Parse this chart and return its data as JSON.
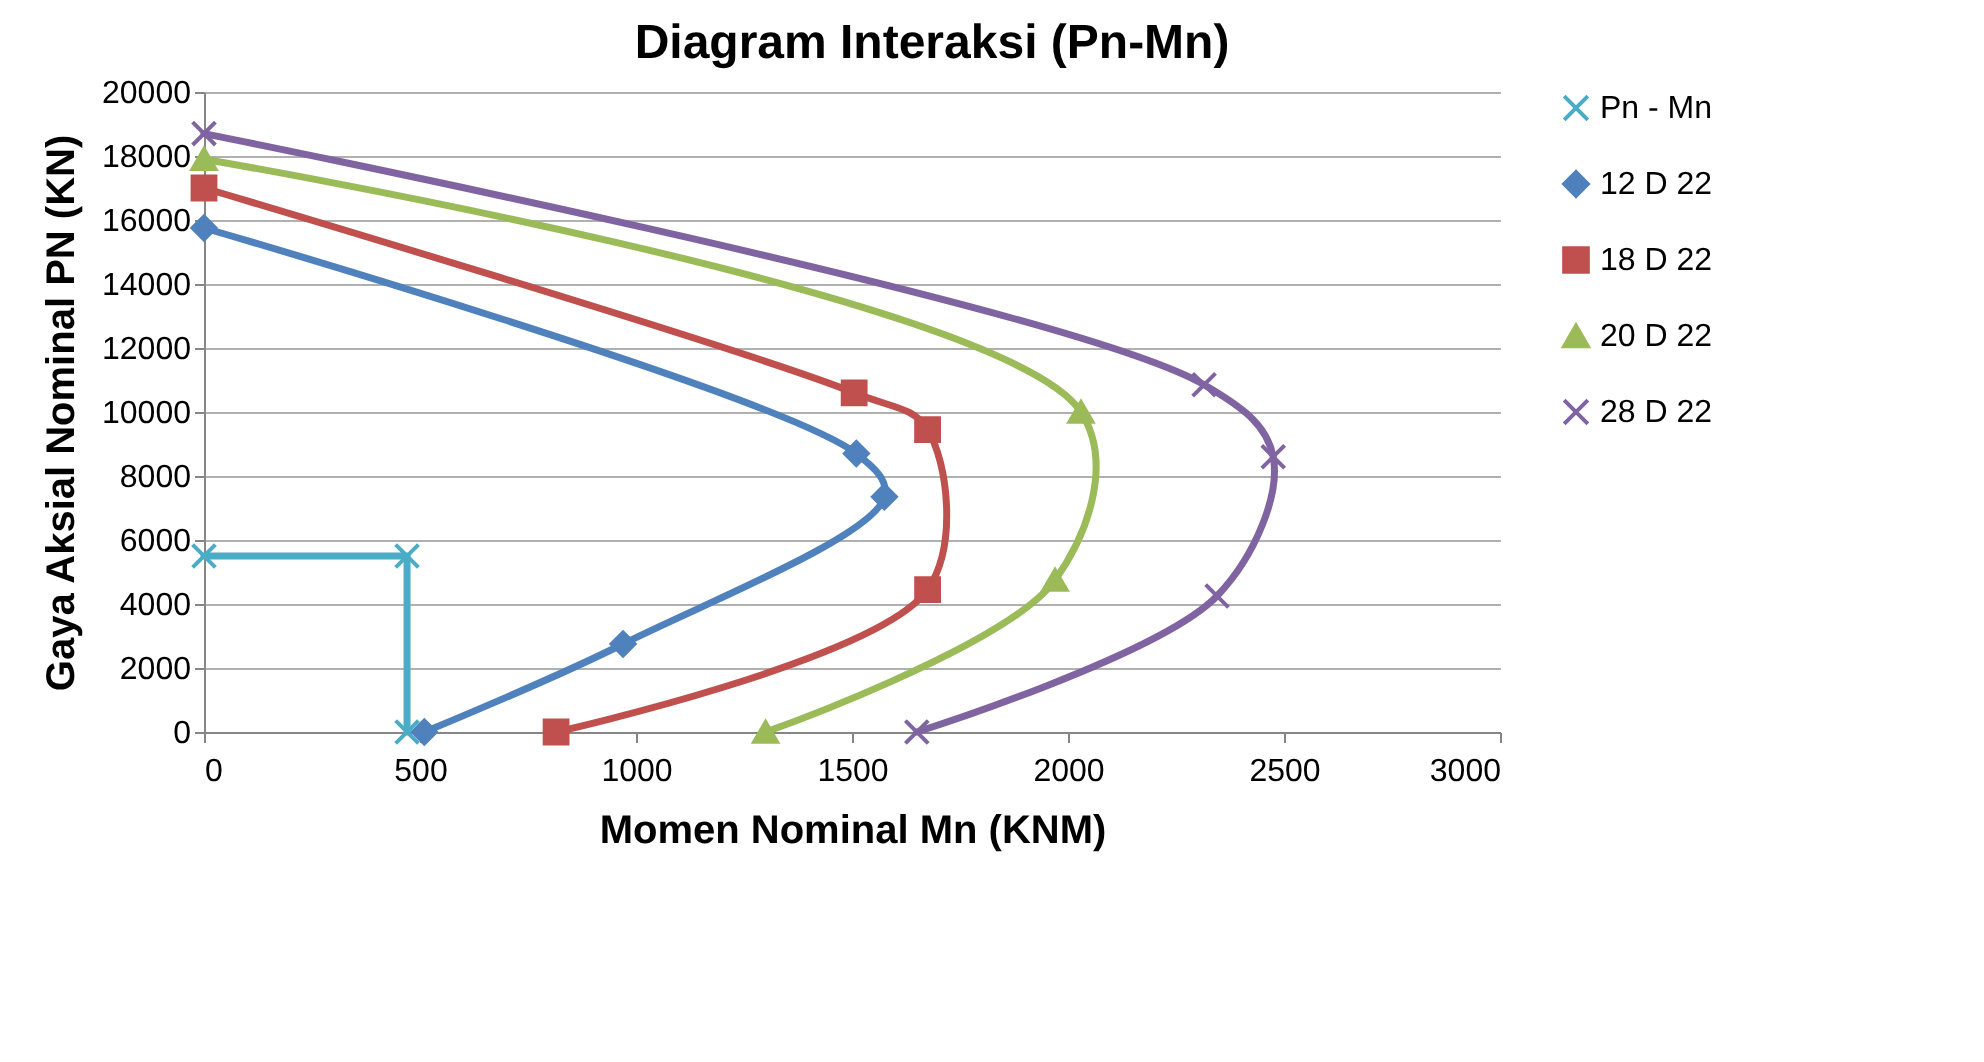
{
  "chart_data": {
    "type": "line",
    "title": "Diagram Interaksi (Pn-Mn)",
    "xlabel": "Momen Nominal Mn (KNM)",
    "ylabel": "Gaya Aksial Nominal PN (KN)",
    "xlim": [
      0,
      3000
    ],
    "xticks": [
      0,
      500,
      1000,
      1500,
      2000,
      2500,
      3000
    ],
    "ylim": [
      0,
      20000
    ],
    "yticks": [
      0,
      2000,
      4000,
      6000,
      8000,
      10000,
      12000,
      14000,
      16000,
      18000,
      20000
    ],
    "grid": "y",
    "legend": "right",
    "series": [
      {
        "name": "Pn - Mn",
        "color": "#4bacc6",
        "marker": "cross",
        "x": [
          0,
          470,
          470
        ],
        "values": [
          5500,
          5500,
          0
        ]
      },
      {
        "name": "12 D 22",
        "color": "#4f81bd",
        "marker": "diamond",
        "x": [
          0,
          1510,
          1575,
          970,
          510
        ],
        "values": [
          15750,
          8700,
          7350,
          2750,
          0
        ]
      },
      {
        "name": "18 D 22",
        "color": "#c0504d",
        "marker": "square",
        "x": [
          0,
          1505,
          1675,
          1675,
          815
        ],
        "values": [
          17000,
          10600,
          9450,
          4450,
          0
        ]
      },
      {
        "name": "20 D 22",
        "color": "#9bbb59",
        "marker": "triangle",
        "x": [
          0,
          2030,
          1970,
          1300
        ],
        "values": [
          17900,
          10000,
          4750,
          0
        ]
      },
      {
        "name": "28 D 22",
        "color": "#8064a2",
        "marker": "cross",
        "x": [
          0,
          2315,
          2475,
          2345,
          1650
        ],
        "values": [
          18700,
          10850,
          8600,
          4250,
          0
        ]
      }
    ]
  }
}
